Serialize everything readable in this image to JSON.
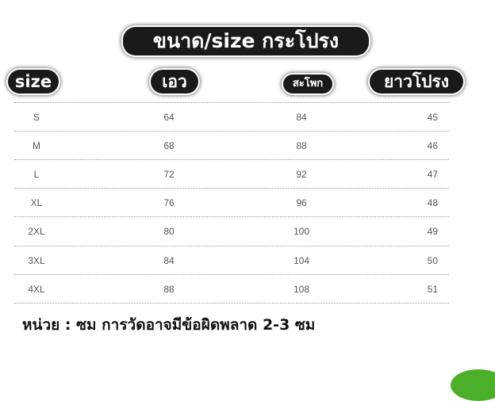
{
  "title": "ขนาด/size กระโปรง",
  "headers": [
    "size",
    "เอว",
    "สะโพก",
    "ยาวโปรง"
  ],
  "rows": [
    [
      "S",
      "64",
      "84",
      "45"
    ],
    [
      "M",
      "68",
      "88",
      "46"
    ],
    [
      "L",
      "72",
      "92",
      "47"
    ],
    [
      "XL",
      "76",
      "96",
      "48"
    ],
    [
      "2XL",
      "80",
      "100",
      "49"
    ],
    [
      "3XL",
      "84",
      "104",
      "50"
    ],
    [
      "4XL",
      "88",
      "108",
      "51"
    ]
  ],
  "note": "หน่วย : ซม การวัดอาจมีข้อผิดพลาด 2-3 ซม",
  "colors": {
    "header_bg": "#1a1a1a",
    "accent_green": "#4caf2a"
  }
}
